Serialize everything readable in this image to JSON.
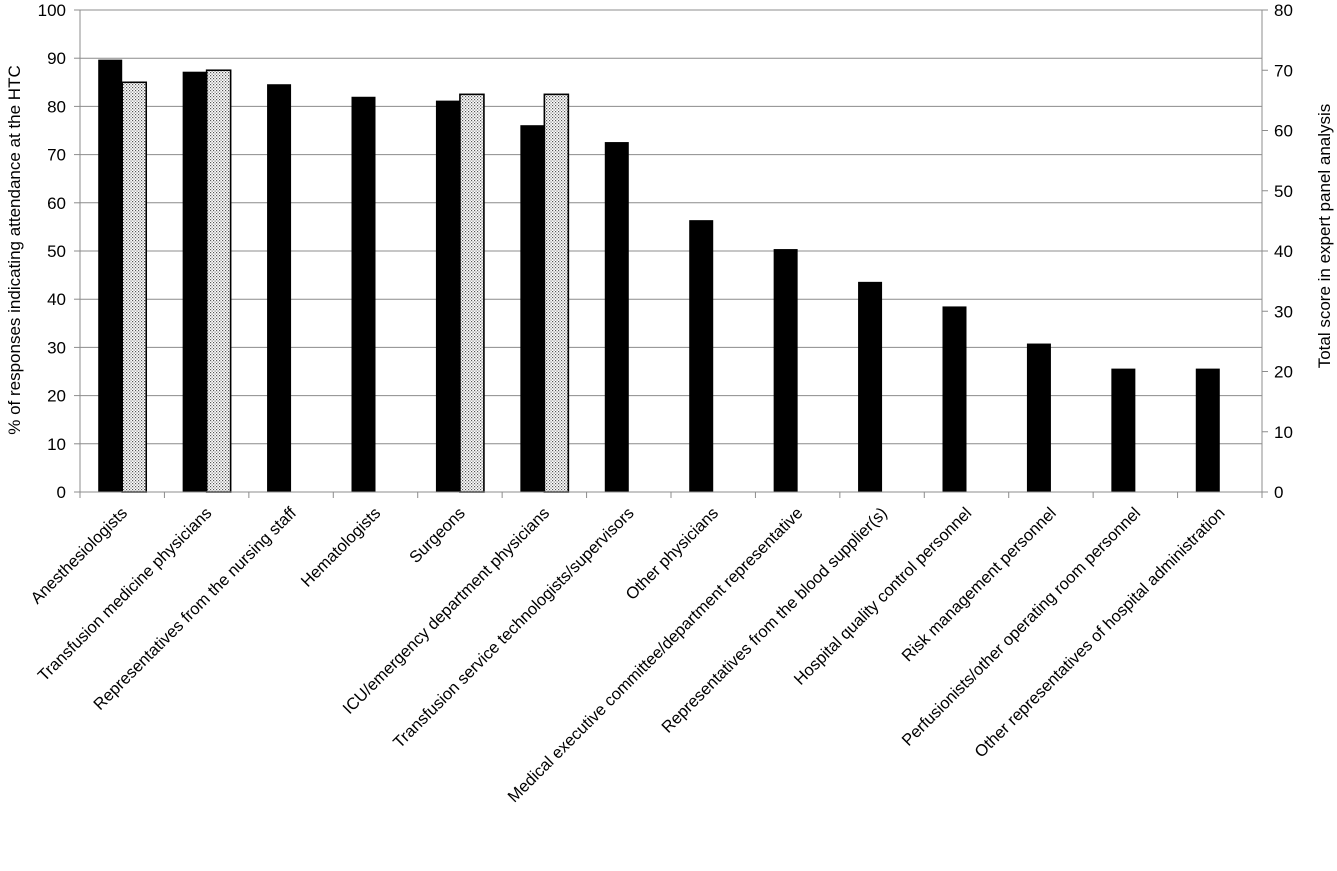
{
  "chart_data": {
    "type": "bar",
    "categories": [
      "Anesthesiologists",
      "Transfusion medicine physicians",
      "Representatives from the nursing staff",
      "Hematologists",
      "Surgeons",
      "ICU/emergency department physicians",
      "Transfusion service technologists/supervisors",
      "Other physicians",
      "Medical executive committee/department representative",
      "Representatives from the blood supplier(s)",
      "Hospital quality control personnel",
      "Risk management personnel",
      "Perfusionists/other operating room personnel",
      "Other representatives of hospital administration"
    ],
    "series": [
      {
        "axis": "left",
        "color": "#000000",
        "values": [
          89.7,
          87.2,
          84.6,
          82.0,
          81.2,
          76.1,
          72.6,
          56.4,
          50.4,
          43.6,
          38.5,
          30.8,
          25.6,
          25.6
        ]
      },
      {
        "axis": "right",
        "pattern": "dotted",
        "values": [
          68,
          70,
          null,
          null,
          66,
          66,
          null,
          null,
          null,
          null,
          null,
          null,
          null,
          null
        ]
      }
    ],
    "ylabel": "% of responses indicating attendance at the HTC",
    "y2label": "Total score in expert panel analysis",
    "ylim": [
      0,
      100
    ],
    "y2lim": [
      0,
      80
    ],
    "yticks": [
      "0",
      "10",
      "20",
      "30",
      "40",
      "50",
      "60",
      "70",
      "80",
      "90",
      "100"
    ],
    "y2ticks": [
      "0",
      "10",
      "20",
      "30",
      "40",
      "50",
      "60",
      "70",
      "80"
    ],
    "grid": true,
    "legend": "none"
  }
}
